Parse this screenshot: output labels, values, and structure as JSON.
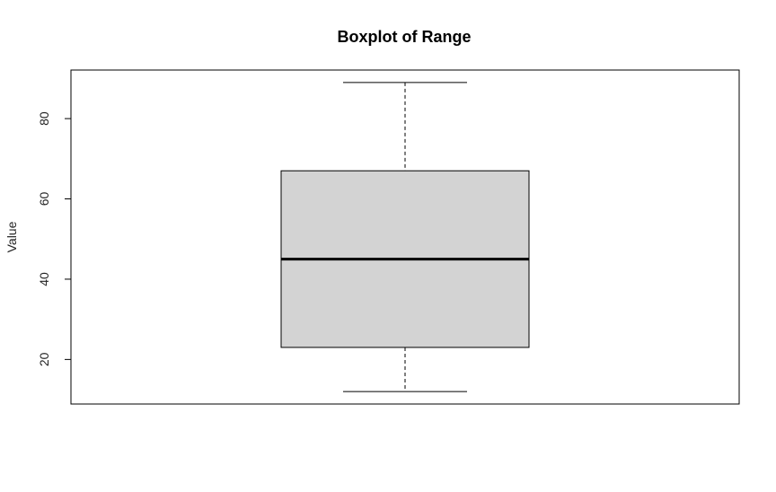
{
  "chart_data": {
    "type": "boxplot",
    "title": "Boxplot of Range",
    "xlabel": "",
    "ylabel": "Value",
    "ylim": [
      8.9,
      92.1
    ],
    "yticks": [
      20,
      40,
      60,
      80
    ],
    "stats": {
      "min": 12,
      "q1": 23,
      "median": 45,
      "q3": 67,
      "max": 89
    },
    "box_color": "#d3d3d3",
    "grid": false
  }
}
